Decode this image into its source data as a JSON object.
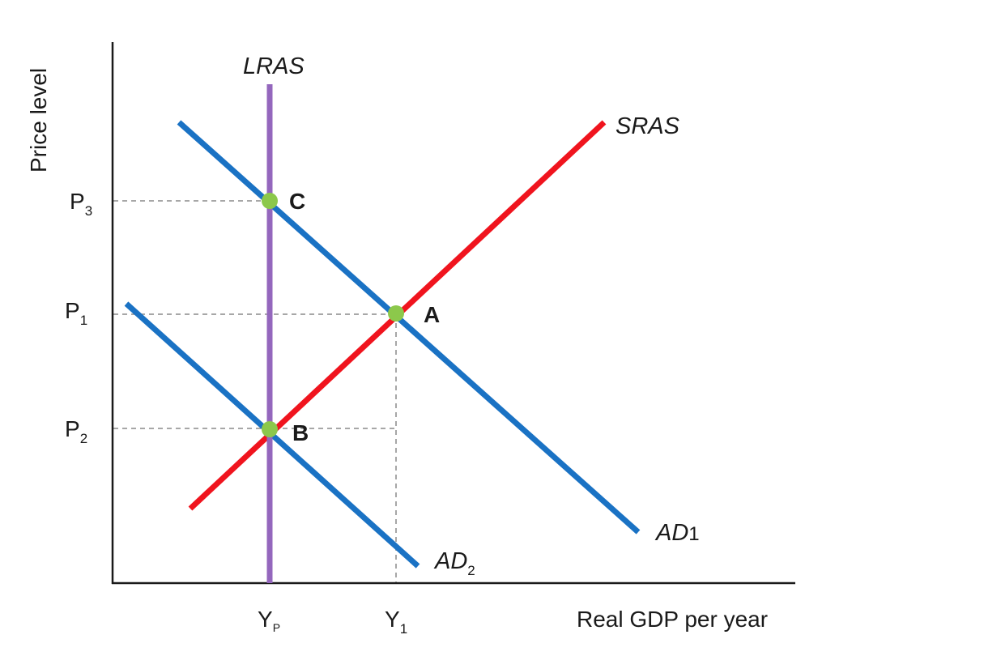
{
  "axes": {
    "y_title": "Price level",
    "x_title": "Real GDP per year"
  },
  "price_levels": [
    {
      "id": "P3",
      "main": "P",
      "sub": "3"
    },
    {
      "id": "P1",
      "main": "P",
      "sub": "1"
    },
    {
      "id": "P2",
      "main": "P",
      "sub": "2"
    }
  ],
  "output_levels": [
    {
      "id": "Yp",
      "main": "Y",
      "sub": "P"
    },
    {
      "id": "Y1",
      "main": "Y",
      "sub": "1"
    }
  ],
  "curves": {
    "lras": {
      "label": "LRAS",
      "color": "#9467bd"
    },
    "sras": {
      "label": "SRAS",
      "color": "#f0141e"
    },
    "ad1": {
      "main": "AD",
      "sub": "1",
      "color": "#1a72c4"
    },
    "ad2": {
      "main": "AD",
      "sub": "2",
      "color": "#1a72c4"
    }
  },
  "points": [
    {
      "id": "A",
      "label": "A",
      "color": "#8cc84b"
    },
    {
      "id": "B",
      "label": "B",
      "color": "#8cc84b"
    },
    {
      "id": "C",
      "label": "C",
      "color": "#8cc84b"
    }
  ]
}
